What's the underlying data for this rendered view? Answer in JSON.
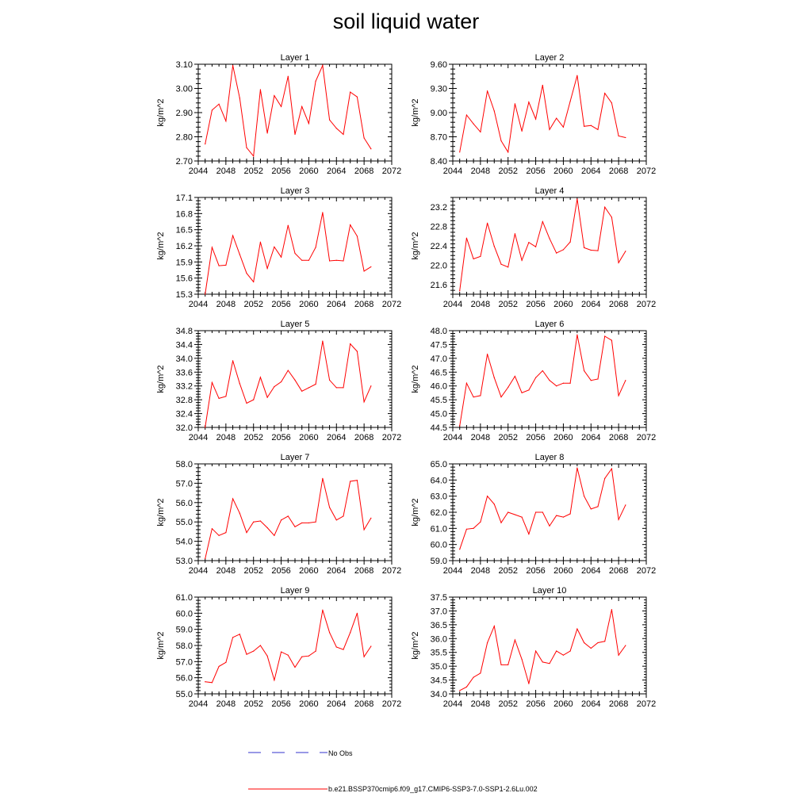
{
  "title": "soil liquid water",
  "legend": {
    "items": [
      {
        "label": "No Obs",
        "color": "#3333cc",
        "style": "dashed"
      },
      {
        "label": "b.e21.BSSP370cmip6.f09_g17.CMIP6-SSP3-7.0-SSP1-2.6Lu.002",
        "color": "#ff0000",
        "style": "solid"
      }
    ]
  },
  "chart_data": [
    {
      "type": "line",
      "title": "Layer 1",
      "xlabel": "",
      "ylabel": "kg/m^2",
      "xlim": [
        2044,
        2072
      ],
      "xticks": [
        "2044",
        "2048",
        "2052",
        "2056",
        "2060",
        "2064",
        "2068",
        "2072"
      ],
      "ylim": [
        2.7,
        3.1
      ],
      "yticks": [
        "2.70",
        "2.80",
        "2.90",
        "3.00",
        "3.10"
      ],
      "x": [
        2045,
        2046,
        2047,
        2048,
        2049,
        2050,
        2051,
        2052,
        2053,
        2054,
        2055,
        2056,
        2057,
        2058,
        2059,
        2060,
        2061,
        2062,
        2063,
        2064,
        2065,
        2066,
        2067,
        2068,
        2069
      ],
      "series": [
        {
          "color": "#ff0000",
          "values": [
            2.77,
            2.91,
            2.935,
            2.865,
            3.095,
            2.96,
            2.755,
            2.72,
            2.995,
            2.815,
            2.97,
            2.925,
            3.05,
            2.81,
            2.925,
            2.855,
            3.03,
            3.095,
            2.87,
            2.835,
            2.81,
            2.985,
            2.965,
            2.795,
            2.75
          ]
        }
      ]
    },
    {
      "type": "line",
      "title": "Layer 2",
      "xlabel": "",
      "ylabel": "kg/m^2",
      "xlim": [
        2044,
        2072
      ],
      "xticks": [
        "2044",
        "2048",
        "2052",
        "2056",
        "2060",
        "2064",
        "2068",
        "2072"
      ],
      "ylim": [
        8.4,
        9.6
      ],
      "yticks": [
        "8.40",
        "8.70",
        "9.00",
        "9.30",
        "9.60"
      ],
      "x": [
        2045,
        2046,
        2047,
        2048,
        2049,
        2050,
        2051,
        2052,
        2053,
        2054,
        2055,
        2056,
        2057,
        2058,
        2059,
        2060,
        2061,
        2062,
        2063,
        2064,
        2065,
        2066,
        2067,
        2068,
        2069
      ],
      "series": [
        {
          "color": "#ff0000",
          "values": [
            8.51,
            8.97,
            8.86,
            8.76,
            9.27,
            9.02,
            8.65,
            8.51,
            9.11,
            8.77,
            9.13,
            8.92,
            9.34,
            8.79,
            8.93,
            8.82,
            9.14,
            9.46,
            8.83,
            8.84,
            8.79,
            9.24,
            9.12,
            8.71,
            8.69
          ]
        }
      ]
    },
    {
      "type": "line",
      "title": "Layer 3",
      "xlabel": "",
      "ylabel": "kg/m^2",
      "xlim": [
        2044,
        2072
      ],
      "xticks": [
        "2044",
        "2048",
        "2052",
        "2056",
        "2060",
        "2064",
        "2068",
        "2072"
      ],
      "ylim": [
        15.3,
        17.1
      ],
      "yticks": [
        "15.3",
        "15.6",
        "15.9",
        "16.2",
        "16.5",
        "16.8",
        "17.1"
      ],
      "x": [
        2045,
        2046,
        2047,
        2048,
        2049,
        2050,
        2051,
        2052,
        2053,
        2054,
        2055,
        2056,
        2057,
        2058,
        2059,
        2060,
        2061,
        2062,
        2063,
        2064,
        2065,
        2066,
        2067,
        2068,
        2069
      ],
      "series": [
        {
          "color": "#ff0000",
          "values": [
            15.3,
            16.17,
            15.83,
            15.84,
            16.39,
            16.04,
            15.69,
            15.53,
            16.27,
            15.78,
            16.18,
            15.99,
            16.58,
            16.06,
            15.93,
            15.93,
            16.17,
            16.82,
            15.92,
            15.93,
            15.92,
            16.59,
            16.38,
            15.73,
            15.81
          ]
        }
      ]
    },
    {
      "type": "line",
      "title": "Layer 4",
      "xlabel": "",
      "ylabel": "kg/m^2",
      "xlim": [
        2044,
        2072
      ],
      "xticks": [
        "2044",
        "2048",
        "2052",
        "2056",
        "2060",
        "2064",
        "2068",
        "2072"
      ],
      "ylim": [
        21.4,
        23.4
      ],
      "yticks": [
        "21.6",
        "22.0",
        "22.4",
        "22.8",
        "23.2"
      ],
      "x": [
        2045,
        2046,
        2047,
        2048,
        2049,
        2050,
        2051,
        2052,
        2053,
        2054,
        2055,
        2056,
        2057,
        2058,
        2059,
        2060,
        2061,
        2062,
        2063,
        2064,
        2065,
        2066,
        2067,
        2068,
        2069
      ],
      "series": [
        {
          "color": "#ff0000",
          "values": [
            21.47,
            22.56,
            22.13,
            22.18,
            22.87,
            22.39,
            22.02,
            21.96,
            22.65,
            22.1,
            22.47,
            22.38,
            22.9,
            22.55,
            22.25,
            22.32,
            22.48,
            23.37,
            22.36,
            22.31,
            22.3,
            23.2,
            22.99,
            22.05,
            22.29
          ]
        }
      ]
    },
    {
      "type": "line",
      "title": "Layer 5",
      "xlabel": "",
      "ylabel": "kg/m^2",
      "xlim": [
        2044,
        2072
      ],
      "xticks": [
        "2044",
        "2048",
        "2052",
        "2056",
        "2060",
        "2064",
        "2068",
        "2072"
      ],
      "ylim": [
        32.0,
        34.8
      ],
      "yticks": [
        "32.0",
        "32.4",
        "32.8",
        "33.2",
        "33.6",
        "34.0",
        "34.4",
        "34.8"
      ],
      "x": [
        2045,
        2046,
        2047,
        2048,
        2049,
        2050,
        2051,
        2052,
        2053,
        2054,
        2055,
        2056,
        2057,
        2058,
        2059,
        2060,
        2061,
        2062,
        2063,
        2064,
        2065,
        2066,
        2067,
        2068,
        2069
      ],
      "series": [
        {
          "color": "#ff0000",
          "values": [
            32.0,
            33.3,
            32.84,
            32.9,
            33.93,
            33.27,
            32.7,
            32.8,
            33.45,
            32.87,
            33.18,
            33.32,
            33.65,
            33.37,
            33.05,
            33.15,
            33.25,
            34.5,
            33.37,
            33.15,
            33.15,
            34.42,
            34.2,
            32.74,
            33.2
          ]
        }
      ]
    },
    {
      "type": "line",
      "title": "Layer 6",
      "xlabel": "",
      "ylabel": "kg/m^2",
      "xlim": [
        2044,
        2072
      ],
      "xticks": [
        "2044",
        "2048",
        "2052",
        "2056",
        "2060",
        "2064",
        "2068",
        "2072"
      ],
      "ylim": [
        44.5,
        48.0
      ],
      "yticks": [
        "44.5",
        "45.0",
        "45.5",
        "46.0",
        "46.5",
        "47.0",
        "47.5",
        "48.0"
      ],
      "x": [
        2045,
        2046,
        2047,
        2048,
        2049,
        2050,
        2051,
        2052,
        2053,
        2054,
        2055,
        2056,
        2057,
        2058,
        2059,
        2060,
        2061,
        2062,
        2063,
        2064,
        2065,
        2066,
        2067,
        2068,
        2069
      ],
      "series": [
        {
          "color": "#ff0000",
          "values": [
            44.55,
            46.1,
            45.6,
            45.65,
            47.15,
            46.3,
            45.6,
            45.95,
            46.35,
            45.75,
            45.85,
            46.3,
            46.55,
            46.2,
            46.0,
            46.1,
            46.1,
            47.85,
            46.55,
            46.2,
            46.25,
            47.8,
            47.65,
            45.65,
            46.2
          ]
        }
      ]
    },
    {
      "type": "line",
      "title": "Layer 7",
      "xlabel": "",
      "ylabel": "kg/m^2",
      "xlim": [
        2044,
        2072
      ],
      "xticks": [
        "2044",
        "2048",
        "2052",
        "2056",
        "2060",
        "2064",
        "2068",
        "2072"
      ],
      "ylim": [
        53.0,
        58.0
      ],
      "yticks": [
        "53.0",
        "54.0",
        "55.0",
        "56.0",
        "57.0",
        "58.0"
      ],
      "x": [
        2045,
        2046,
        2047,
        2048,
        2049,
        2050,
        2051,
        2052,
        2053,
        2054,
        2055,
        2056,
        2057,
        2058,
        2059,
        2060,
        2061,
        2062,
        2063,
        2064,
        2065,
        2066,
        2067,
        2068,
        2069
      ],
      "series": [
        {
          "color": "#ff0000",
          "values": [
            53.1,
            54.65,
            54.3,
            54.45,
            56.2,
            55.45,
            54.45,
            55.0,
            55.05,
            54.7,
            54.3,
            55.1,
            55.3,
            54.75,
            54.95,
            54.95,
            55.0,
            57.25,
            55.75,
            55.1,
            55.3,
            57.1,
            57.15,
            54.6,
            55.2
          ]
        }
      ]
    },
    {
      "type": "line",
      "title": "Layer 8",
      "xlabel": "",
      "ylabel": "kg/m^2",
      "xlim": [
        2044,
        2072
      ],
      "xticks": [
        "2044",
        "2048",
        "2052",
        "2056",
        "2060",
        "2064",
        "2068",
        "2072"
      ],
      "ylim": [
        59.0,
        65.0
      ],
      "yticks": [
        "59.0",
        "60.0",
        "61.0",
        "62.0",
        "63.0",
        "64.0",
        "65.0"
      ],
      "x": [
        2045,
        2046,
        2047,
        2048,
        2049,
        2050,
        2051,
        2052,
        2053,
        2054,
        2055,
        2056,
        2057,
        2058,
        2059,
        2060,
        2061,
        2062,
        2063,
        2064,
        2065,
        2066,
        2067,
        2068,
        2069
      ],
      "series": [
        {
          "color": "#ff0000",
          "values": [
            59.7,
            60.95,
            61.0,
            61.4,
            63.0,
            62.5,
            61.35,
            62.0,
            61.85,
            61.7,
            60.65,
            62.0,
            62.0,
            61.15,
            61.8,
            61.7,
            61.9,
            64.75,
            63.0,
            62.2,
            62.35,
            64.1,
            64.7,
            61.55,
            62.45
          ]
        }
      ]
    },
    {
      "type": "line",
      "title": "Layer 9",
      "xlabel": "",
      "ylabel": "kg/m^2",
      "xlim": [
        2044,
        2072
      ],
      "xticks": [
        "2044",
        "2048",
        "2052",
        "2056",
        "2060",
        "2064",
        "2068",
        "2072"
      ],
      "ylim": [
        55.0,
        61.0
      ],
      "yticks": [
        "55.0",
        "56.0",
        "57.0",
        "58.0",
        "59.0",
        "60.0",
        "61.0"
      ],
      "x": [
        2045,
        2046,
        2047,
        2048,
        2049,
        2050,
        2051,
        2052,
        2053,
        2054,
        2055,
        2056,
        2057,
        2058,
        2059,
        2060,
        2061,
        2062,
        2063,
        2064,
        2065,
        2066,
        2067,
        2068,
        2069
      ],
      "series": [
        {
          "color": "#ff0000",
          "values": [
            55.75,
            55.7,
            56.7,
            56.95,
            58.5,
            58.7,
            57.45,
            57.65,
            58.0,
            57.35,
            55.85,
            57.6,
            57.4,
            56.65,
            57.3,
            57.35,
            57.65,
            60.2,
            58.8,
            57.9,
            57.75,
            58.8,
            60.0,
            57.3,
            57.95
          ]
        }
      ]
    },
    {
      "type": "line",
      "title": "Layer 10",
      "xlabel": "",
      "ylabel": "kg/m^2",
      "xlim": [
        2044,
        2072
      ],
      "xticks": [
        "2044",
        "2048",
        "2052",
        "2056",
        "2060",
        "2064",
        "2068",
        "2072"
      ],
      "ylim": [
        34.0,
        37.5
      ],
      "yticks": [
        "34.0",
        "34.5",
        "35.0",
        "35.5",
        "36.0",
        "36.5",
        "37.0",
        "37.5"
      ],
      "x": [
        2045,
        2046,
        2047,
        2048,
        2049,
        2050,
        2051,
        2052,
        2053,
        2054,
        2055,
        2056,
        2057,
        2058,
        2059,
        2060,
        2061,
        2062,
        2063,
        2064,
        2065,
        2066,
        2067,
        2068,
        2069
      ],
      "series": [
        {
          "color": "#ff0000",
          "values": [
            34.12,
            34.25,
            34.6,
            34.75,
            35.85,
            36.45,
            35.05,
            35.05,
            35.95,
            35.25,
            34.37,
            35.55,
            35.15,
            35.1,
            35.55,
            35.4,
            35.55,
            36.35,
            35.85,
            35.65,
            35.85,
            35.9,
            37.05,
            35.4,
            35.75
          ]
        }
      ]
    }
  ]
}
